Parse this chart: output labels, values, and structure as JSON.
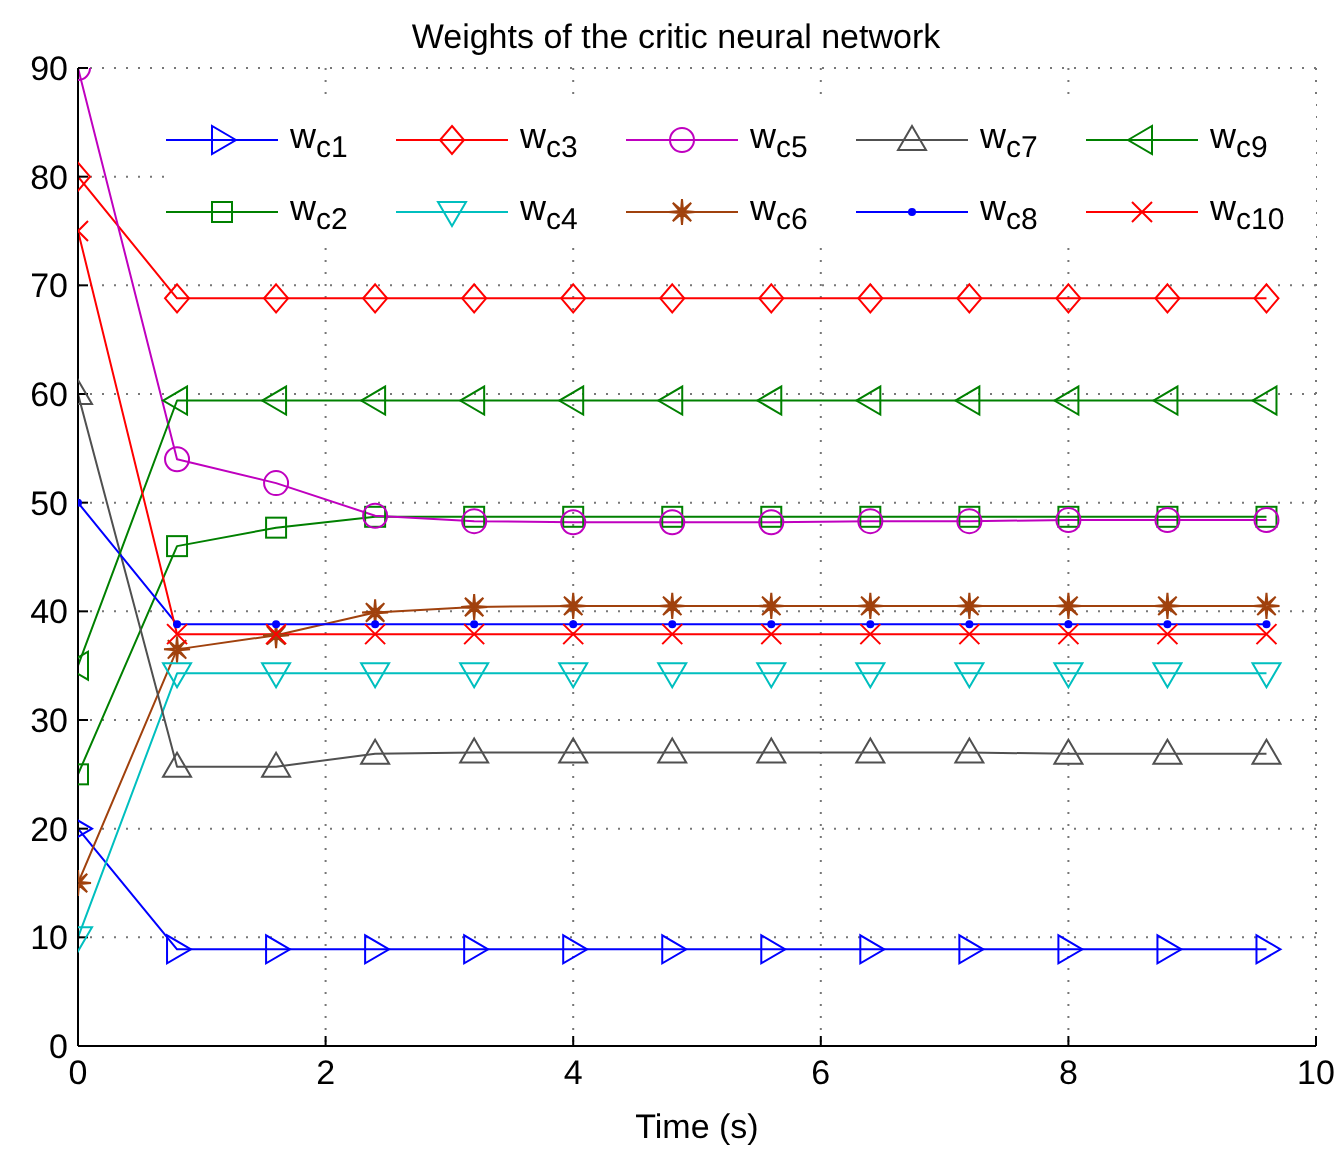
{
  "chart_data": {
    "type": "line",
    "title": "Weights of the critic neural network",
    "xlabel": "Time (s)",
    "x": [
      0,
      0.8,
      1.6,
      2.4,
      3.2,
      4.0,
      4.8,
      5.6,
      6.4,
      7.2,
      8.0,
      8.8,
      9.6
    ],
    "xlim": [
      0,
      10
    ],
    "xticks": [
      0,
      2,
      4,
      6,
      8,
      10
    ],
    "ylim": [
      0,
      90
    ],
    "yticks": [
      0,
      10,
      20,
      30,
      40,
      50,
      60,
      70,
      80,
      90
    ],
    "grid": true,
    "legend": "top",
    "line_style": "solid",
    "series": [
      {
        "name": "w$_{c1}$",
        "color": "#0000ff",
        "marker": "triangle-right",
        "values": [
          20,
          8.9,
          8.9,
          8.9,
          8.9,
          8.9,
          8.9,
          8.9,
          8.9,
          8.9,
          8.9,
          8.9,
          8.9
        ]
      },
      {
        "name": "w$_{c2}$",
        "color": "#008000",
        "marker": "square",
        "values": [
          25,
          46,
          47.7,
          48.7,
          48.7,
          48.7,
          48.7,
          48.7,
          48.7,
          48.7,
          48.7,
          48.7,
          48.7
        ]
      },
      {
        "name": "w$_{c3}$",
        "color": "#ff0000",
        "marker": "diamond",
        "values": [
          80,
          68.8,
          68.8,
          68.8,
          68.8,
          68.8,
          68.8,
          68.8,
          68.8,
          68.8,
          68.8,
          68.8,
          68.8
        ]
      },
      {
        "name": "w$_{c4}$",
        "color": "#00bfbf",
        "marker": "triangle-down",
        "values": [
          10,
          34.3,
          34.3,
          34.3,
          34.3,
          34.3,
          34.3,
          34.3,
          34.3,
          34.3,
          34.3,
          34.3,
          34.3
        ]
      },
      {
        "name": "w$_{c5}$",
        "color": "#bf00bf",
        "marker": "circle",
        "values": [
          90,
          54,
          51.8,
          48.8,
          48.3,
          48.2,
          48.2,
          48.2,
          48.3,
          48.3,
          48.4,
          48.4,
          48.4
        ]
      },
      {
        "name": "w$_{c6}$",
        "color": "#a0410d",
        "marker": "star",
        "values": [
          15,
          36.5,
          37.8,
          39.9,
          40.4,
          40.5,
          40.5,
          40.5,
          40.5,
          40.5,
          40.5,
          40.5,
          40.5
        ]
      },
      {
        "name": "w$_{c7}$",
        "color": "#505050",
        "marker": "triangle",
        "values": [
          60,
          25.7,
          25.7,
          26.9,
          27,
          27,
          27,
          27,
          27,
          27,
          26.9,
          26.9,
          26.9
        ]
      },
      {
        "name": "w$_{c8}$",
        "color": "#0000ff",
        "marker": "point",
        "values": [
          50,
          38.8,
          38.8,
          38.8,
          38.8,
          38.8,
          38.8,
          38.8,
          38.8,
          38.8,
          38.8,
          38.8,
          38.8
        ]
      },
      {
        "name": "w$_{c9}$",
        "color": "#008000",
        "marker": "triangle-left",
        "values": [
          35,
          59.4,
          59.4,
          59.4,
          59.4,
          59.4,
          59.4,
          59.4,
          59.4,
          59.4,
          59.4,
          59.4,
          59.4
        ]
      },
      {
        "name": "w$_{c10}$",
        "color": "#ff0000",
        "marker": "cross",
        "values": [
          75,
          37.9,
          37.9,
          37.9,
          37.9,
          37.9,
          37.9,
          37.9,
          37.9,
          37.9,
          37.9,
          37.9,
          37.9
        ]
      }
    ]
  }
}
